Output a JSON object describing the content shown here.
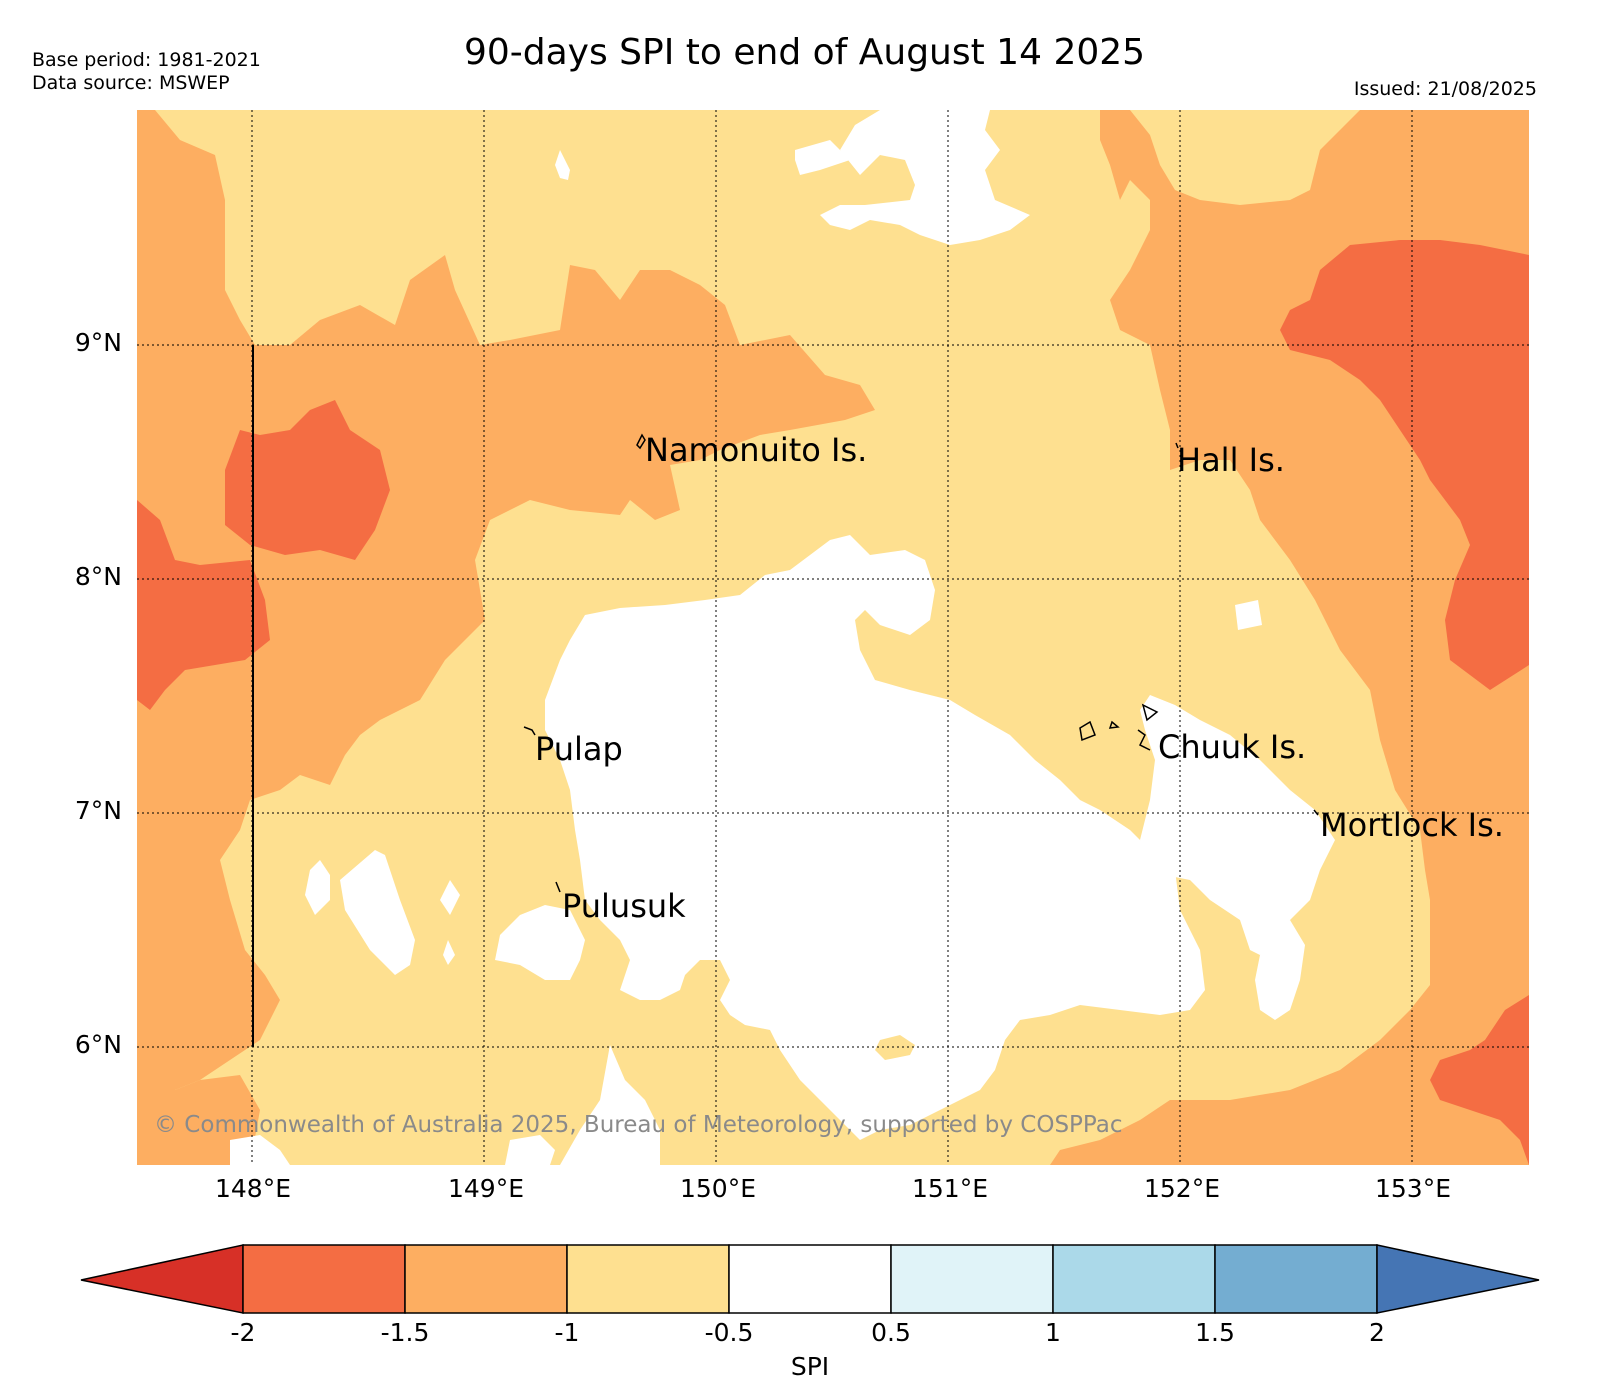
{
  "header": {
    "base_period": "Base period: 1981-2021",
    "data_source": "Data source: MSWEP",
    "title": "90-days SPI to end of August 14 2025",
    "issued": "Issued: 21/08/2025"
  },
  "map": {
    "lat_labels": [
      "9°N",
      "8°N",
      "7°N",
      "6°N"
    ],
    "lon_labels": [
      "148°E",
      "149°E",
      "150°E",
      "151°E",
      "152°E",
      "153°E"
    ],
    "islands": {
      "namonuito": "Namonuito Is.",
      "hall": "Hall Is.",
      "pulap": "Pulap",
      "chuuk": "Chuuk Is.",
      "mortlock": "Mortlock Is.",
      "pulusuk": "Pulusuk"
    },
    "copyright": "© Commonwealth of Australia 2025, Bureau of Meteorology, supported by COSPPac",
    "category_colors": {
      "below_-2": "#d73027",
      "-2_to_-1.5": "#f46d43",
      "-1.5_to_-1": "#fdae61",
      "-1_to_-0.5": "#fee090",
      "-0.5_to_0.5": "#ffffff",
      "0.5_to_1": "#e0f3f8",
      "1_to_1.5": "#abd9e9",
      "1.5_to_2": "#74add1",
      "above_2": "#4575b4"
    }
  },
  "colorbar": {
    "ticks": [
      "-2",
      "-1.5",
      "-1",
      "-0.5",
      "0.5",
      "1",
      "1.5",
      "2"
    ],
    "label": "SPI"
  }
}
